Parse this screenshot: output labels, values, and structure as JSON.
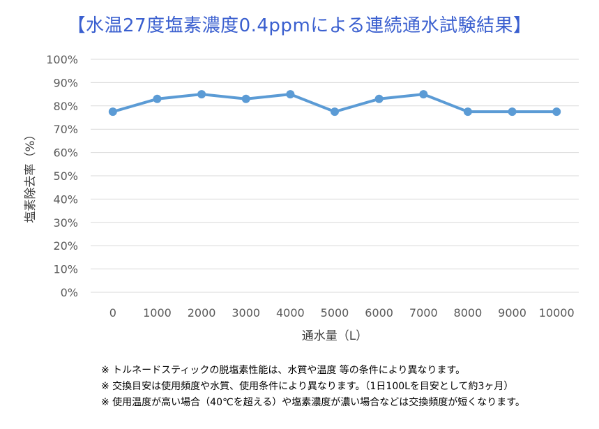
{
  "chart_data": {
    "type": "line",
    "title": "【水温27度塩素濃度0.4ppmによる連続通水試験結果】",
    "xlabel": "通水量（L）",
    "ylabel": "塩素除去率（%）",
    "categories": [
      "0",
      "1000",
      "2000",
      "3000",
      "4000",
      "5000",
      "6000",
      "7000",
      "8000",
      "9000",
      "10000"
    ],
    "series": [
      {
        "values": [
          77.5,
          83,
          85,
          83,
          85,
          77.5,
          83,
          85,
          77.5,
          77.5,
          77.5
        ]
      }
    ],
    "ylim": [
      0,
      100
    ],
    "yticks": [
      "0%",
      "10%",
      "20%",
      "30%",
      "40%",
      "50%",
      "60%",
      "70%",
      "80%",
      "90%",
      "100%"
    ],
    "grid": true,
    "legend": "none",
    "colors": {
      "line": "#5b9bd5",
      "grid": "#d9d9d9",
      "title": "#3a5fcf"
    }
  },
  "notes": [
    "※ トルネードスティックの脱塩素性能は、水質や温度 等の条件により異なります。",
    "※ 交換目安は使用頻度や水質、使用条件により異なります。（1日100Lを目安として約3ヶ月）",
    "※ 使用温度が高い場合（40℃を超える）や塩素濃度が濃い場合などは交換頻度が短くなります。"
  ]
}
